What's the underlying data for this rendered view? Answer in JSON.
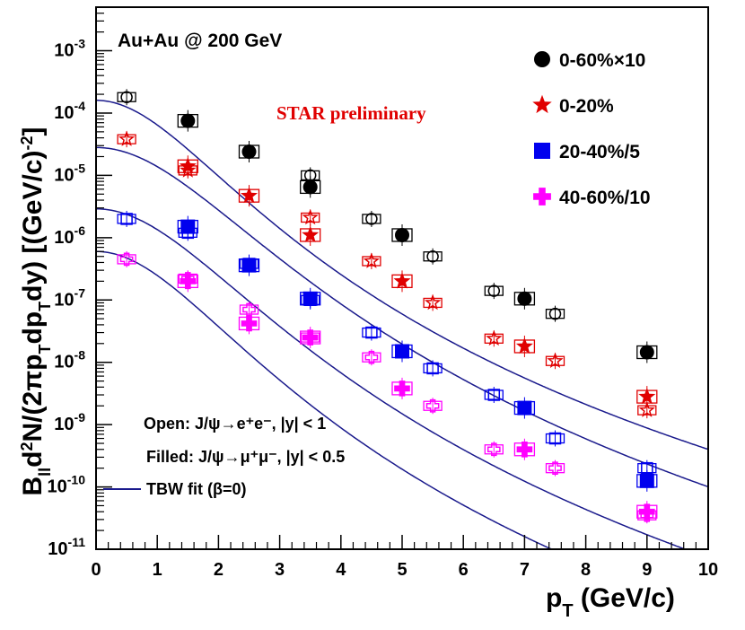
{
  "chart_data": {
    "type": "scatter",
    "title": "Au+Au @ 200 GeV",
    "annotation": "STAR preliminary",
    "xlabel": "p_T (GeV/c)",
    "ylabel": "B_ll d²N/(2πp_T dp_T dy) [(GeV/c)^-2]",
    "xlim": [
      0,
      10
    ],
    "ylim": [
      1e-11,
      0.005
    ],
    "yscale": "log",
    "legend_position": "top-right",
    "x_ticks": [
      "0",
      "1",
      "2",
      "3",
      "4",
      "5",
      "6",
      "7",
      "8",
      "9",
      "10"
    ],
    "y_ticks": [
      {
        "base": "10",
        "exp": "-11"
      },
      {
        "base": "10",
        "exp": "-10"
      },
      {
        "base": "10",
        "exp": "-9"
      },
      {
        "base": "10",
        "exp": "-8"
      },
      {
        "base": "10",
        "exp": "-7"
      },
      {
        "base": "10",
        "exp": "-6"
      },
      {
        "base": "10",
        "exp": "-5"
      },
      {
        "base": "10",
        "exp": "-4"
      },
      {
        "base": "10",
        "exp": "-3"
      }
    ],
    "notes": {
      "open": "Open: J/ψ→e⁺e⁻, |y| < 1",
      "filled": "Filled: J/ψ→μ⁺μ⁻, |y| < 0.5",
      "fit": "TBW fit (β=0)"
    },
    "fit_color": "#1a1a8c",
    "series": [
      {
        "name": "0-60%×10",
        "marker": "circle",
        "color": "#000000",
        "fit": {
          "A": 0.00016,
          "x0": 1.95,
          "n": 7.8
        },
        "open": [
          [
            0.5,
            0.00018
          ],
          [
            3.5,
            1e-05
          ],
          [
            4.5,
            2e-06
          ],
          [
            5.5,
            5e-07
          ],
          [
            6.5,
            1.4e-07
          ],
          [
            7.5,
            6e-08
          ]
        ],
        "filled": [
          [
            1.5,
            7.5e-05
          ],
          [
            2.5,
            2.4e-05
          ],
          [
            3.5,
            6.5e-06
          ],
          [
            5.0,
            1.1e-06
          ],
          [
            7.0,
            1.05e-07
          ],
          [
            9.0,
            1.45e-08
          ]
        ]
      },
      {
        "name": "0-20%",
        "marker": "star",
        "color": "#e00000",
        "fit": {
          "A": 2.8e-05,
          "x0": 2.35,
          "n": 8.5
        },
        "open": [
          [
            0.5,
            3.8e-05
          ],
          [
            1.5,
            1.2e-05
          ],
          [
            3.5,
            2.1e-06
          ],
          [
            4.5,
            4.2e-07
          ],
          [
            5.5,
            9e-08
          ],
          [
            6.5,
            2.4e-08
          ],
          [
            7.5,
            1.05e-08
          ],
          [
            9.0,
            1.7e-09
          ]
        ],
        "filled": [
          [
            1.5,
            1.4e-05
          ],
          [
            2.5,
            4.7e-06
          ],
          [
            3.5,
            1.1e-06
          ],
          [
            5.0,
            2e-07
          ],
          [
            7.0,
            1.8e-08
          ],
          [
            9.0,
            2.8e-09
          ]
        ]
      },
      {
        "name": "20-40%/5",
        "marker": "square",
        "color": "#0000ee",
        "fit": {
          "A": 2.9e-06,
          "x0": 2.25,
          "n": 8.5
        },
        "open": [
          [
            0.5,
            2e-06
          ],
          [
            1.5,
            1.2e-06
          ],
          [
            2.5,
            3.8e-07
          ],
          [
            3.5,
            1e-07
          ],
          [
            4.5,
            3e-08
          ],
          [
            5.5,
            8e-09
          ],
          [
            6.5,
            3e-09
          ],
          [
            7.5,
            6e-10
          ],
          [
            9.0,
            2e-10
          ]
        ],
        "filled": [
          [
            1.5,
            1.5e-06
          ],
          [
            2.5,
            3.6e-07
          ],
          [
            3.5,
            1.05e-07
          ],
          [
            5.0,
            1.5e-08
          ],
          [
            7.0,
            1.85e-09
          ],
          [
            9.0,
            1.25e-10
          ]
        ]
      },
      {
        "name": "40-60%/10",
        "marker": "cross",
        "color": "#ff00ff",
        "fit": {
          "A": 6e-07,
          "x0": 2.05,
          "n": 8.3
        },
        "open": [
          [
            0.5,
            4.5e-07
          ],
          [
            1.5,
            2.2e-07
          ],
          [
            2.5,
            7e-08
          ],
          [
            3.5,
            2.5e-08
          ],
          [
            4.5,
            1.2e-08
          ],
          [
            5.5,
            2e-09
          ],
          [
            6.5,
            4e-10
          ],
          [
            7.5,
            2e-10
          ],
          [
            9.0,
            3.5e-11
          ]
        ],
        "filled": [
          [
            1.5,
            2e-07
          ],
          [
            2.5,
            4.2e-08
          ],
          [
            3.5,
            2.5e-08
          ],
          [
            5.0,
            3.8e-09
          ],
          [
            7.0,
            4e-10
          ],
          [
            9.0,
            4e-11
          ]
        ]
      }
    ]
  }
}
